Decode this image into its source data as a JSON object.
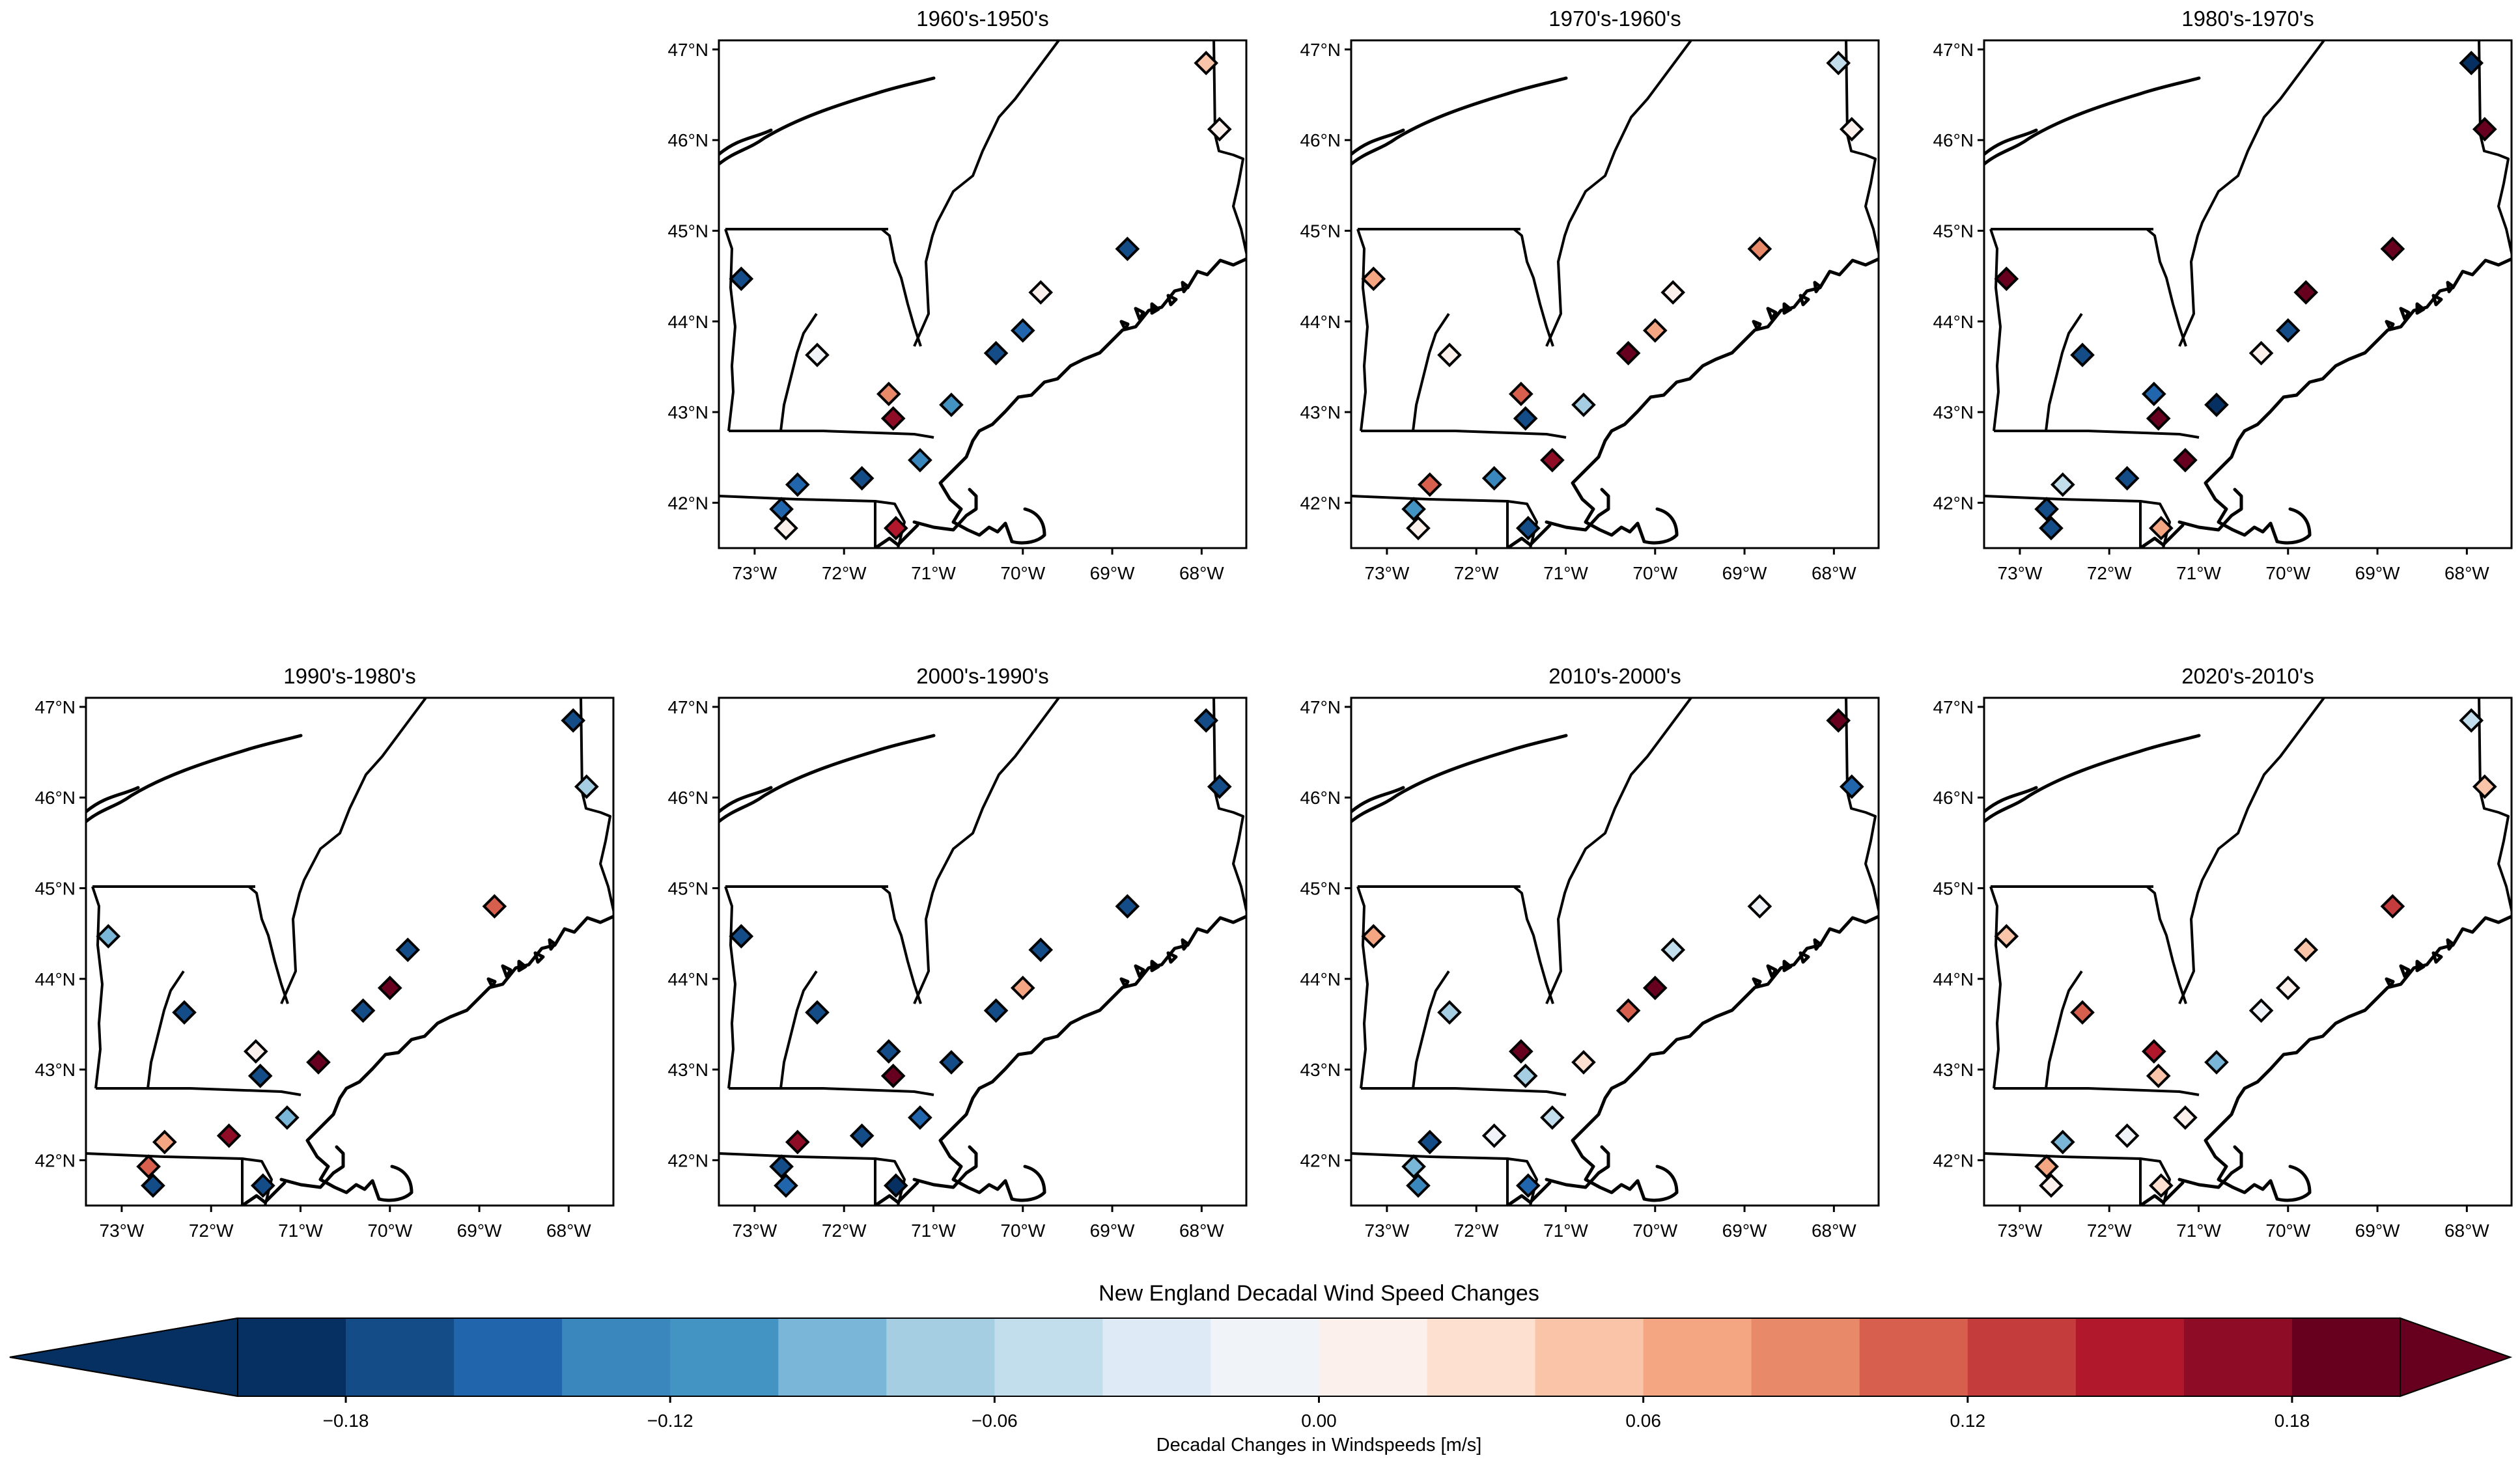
{
  "figure": {
    "colorbar_title": "New England Decadal Wind Speed Changes",
    "colorbar_label": "Decadal Changes in Windspeeds [m/s]",
    "colorbar_ticks": [
      -0.18,
      -0.12,
      -0.06,
      0.0,
      0.06,
      0.12,
      0.18
    ],
    "colorbar_tick_labels": [
      "−0.18",
      "−0.12",
      "−0.06",
      "0.00",
      "0.06",
      "0.12",
      "0.18"
    ],
    "colorbar_range": [
      -0.2,
      0.2
    ],
    "colorbar_extend": "both",
    "colormap": [
      "#053061",
      "#134c87",
      "#2166ac",
      "#3a87bd",
      "#4393c3",
      "#79b6d7",
      "#a6cee3",
      "#c2ddec",
      "#deebf7",
      "#f0f4f8",
      "#fbf0ec",
      "#fde0d0",
      "#f9c4a8",
      "#f4a582",
      "#e8896a",
      "#d6604d",
      "#c43c3c",
      "#b2182b",
      "#8e0c25",
      "#67001f"
    ],
    "lon_ticks": [
      "73°W",
      "72°W",
      "71°W",
      "70°W",
      "69°W",
      "68°W"
    ],
    "lat_ticks": [
      "47°N",
      "46°N",
      "45°N",
      "44°N",
      "43°N",
      "42°N"
    ],
    "lon_range": [
      -73.4,
      -67.5
    ],
    "lat_range": [
      41.5,
      47.1
    ]
  },
  "chart_data": {
    "type": "scatter",
    "x_units": "degrees longitude",
    "y_units": "degrees latitude",
    "value_units": "m/s",
    "stations": [
      {
        "lon": -73.15,
        "lat": 44.47
      },
      {
        "lon": -72.3,
        "lat": 43.63
      },
      {
        "lon": -71.5,
        "lat": 43.2
      },
      {
        "lon": -71.45,
        "lat": 42.93
      },
      {
        "lon": -70.8,
        "lat": 43.08
      },
      {
        "lon": -70.3,
        "lat": 43.65
      },
      {
        "lon": -69.8,
        "lat": 44.32
      },
      {
        "lon": -70.0,
        "lat": 43.9
      },
      {
        "lon": -68.83,
        "lat": 44.8
      },
      {
        "lon": -67.95,
        "lat": 46.85
      },
      {
        "lon": -67.8,
        "lat": 46.12
      },
      {
        "lon": -71.15,
        "lat": 42.47
      },
      {
        "lon": -71.8,
        "lat": 42.27
      },
      {
        "lon": -72.52,
        "lat": 42.2
      },
      {
        "lon": -72.7,
        "lat": 41.93
      },
      {
        "lon": -72.65,
        "lat": 41.72
      },
      {
        "lon": -71.42,
        "lat": 41.72
      }
    ],
    "panels": [
      {
        "title": "1960's-1950's",
        "values": [
          -0.17,
          -0.01,
          0.08,
          0.16,
          -0.12,
          -0.17,
          0.01,
          -0.15,
          -0.17,
          0.04,
          0.01,
          -0.14,
          -0.17,
          -0.15,
          -0.15,
          0.01,
          0.14
        ]
      },
      {
        "title": "1970's-1960's",
        "values": [
          0.07,
          0.01,
          0.12,
          -0.17,
          -0.07,
          0.18,
          0.01,
          0.07,
          0.08,
          -0.05,
          0.01,
          0.17,
          -0.14,
          0.11,
          -0.11,
          0.01,
          -0.18
        ]
      },
      {
        "title": "1980's-1970's",
        "values": [
          0.18,
          -0.17,
          -0.15,
          0.18,
          -0.19,
          0.01,
          0.18,
          -0.17,
          0.19,
          -0.19,
          0.19,
          0.18,
          -0.17,
          -0.05,
          -0.17,
          -0.18,
          0.06
        ]
      },
      {
        "title": "1990's-1980's",
        "values": [
          -0.09,
          -0.17,
          0.01,
          -0.17,
          0.18,
          -0.17,
          -0.17,
          0.18,
          0.1,
          -0.17,
          -0.07,
          -0.09,
          0.17,
          0.06,
          0.12,
          -0.17,
          -0.18
        ]
      },
      {
        "title": "2000's-1990's",
        "values": [
          -0.17,
          -0.17,
          -0.17,
          0.18,
          -0.17,
          -0.17,
          -0.17,
          0.06,
          -0.17,
          -0.17,
          -0.17,
          -0.15,
          -0.17,
          0.17,
          -0.17,
          -0.16,
          -0.19
        ]
      },
      {
        "title": "2010's-2000's",
        "values": [
          0.07,
          -0.08,
          0.18,
          -0.08,
          0.03,
          0.1,
          -0.05,
          0.18,
          -0.02,
          0.18,
          -0.15,
          -0.06,
          -0.01,
          -0.17,
          -0.09,
          -0.14,
          -0.15
        ]
      },
      {
        "title": "2020's-2010's",
        "values": [
          0.05,
          0.1,
          0.14,
          0.05,
          -0.09,
          -0.01,
          0.04,
          0.01,
          0.13,
          -0.05,
          0.05,
          0.01,
          -0.01,
          -0.1,
          0.06,
          0.01,
          0.03
        ]
      }
    ]
  }
}
